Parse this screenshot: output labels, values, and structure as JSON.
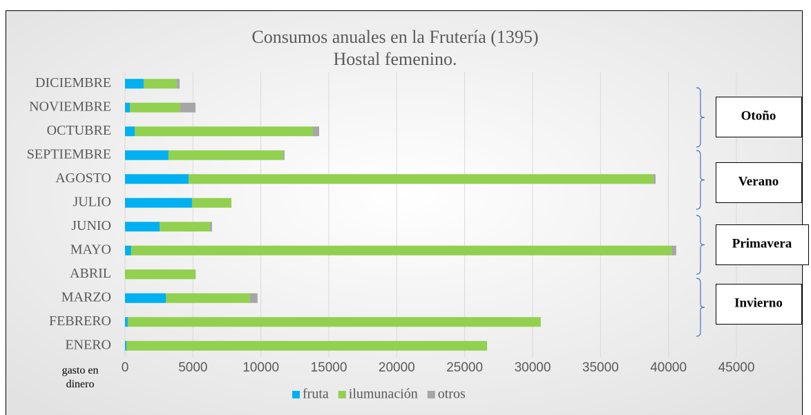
{
  "chart_data": {
    "type": "stacked-bar-horizontal",
    "title": "Consumos anuales en la Frutería (1395)",
    "subtitle": "Hostal femenino.",
    "axis_label": "gasto en dinero",
    "categories": [
      "ENERO",
      "FEBRERO",
      "MARZO",
      "ABRIL",
      "MAYO",
      "JUNIO",
      "JULIO",
      "AGOSTO",
      "SEPTIEMBRE",
      "OCTUBRE",
      "NOVIEMBRE",
      "DICIEMBRE"
    ],
    "series": [
      {
        "name": "fruta",
        "color": "#00b0f0",
        "values": [
          100,
          200,
          3000,
          0,
          450,
          2550,
          4930,
          4680,
          3200,
          710,
          360,
          1370
        ]
      },
      {
        "name": "ilumunación",
        "color": "#92d050",
        "values": [
          26550,
          30400,
          6200,
          5200,
          39800,
          3700,
          2900,
          34210,
          8440,
          13120,
          3710,
          2440
        ]
      },
      {
        "name": "otros",
        "color": "#a6a6a6",
        "values": [
          0,
          0,
          550,
          0,
          320,
          150,
          0,
          160,
          100,
          460,
          1120,
          210
        ]
      }
    ],
    "xlim": [
      0,
      45000
    ],
    "xticks": [
      0,
      5000,
      10000,
      15000,
      20000,
      25000,
      30000,
      35000,
      40000,
      45000
    ],
    "grid": true,
    "legend": "bottom",
    "seasons": [
      "Otoño",
      "Verano",
      "Primavera",
      "Invierno"
    ]
  }
}
